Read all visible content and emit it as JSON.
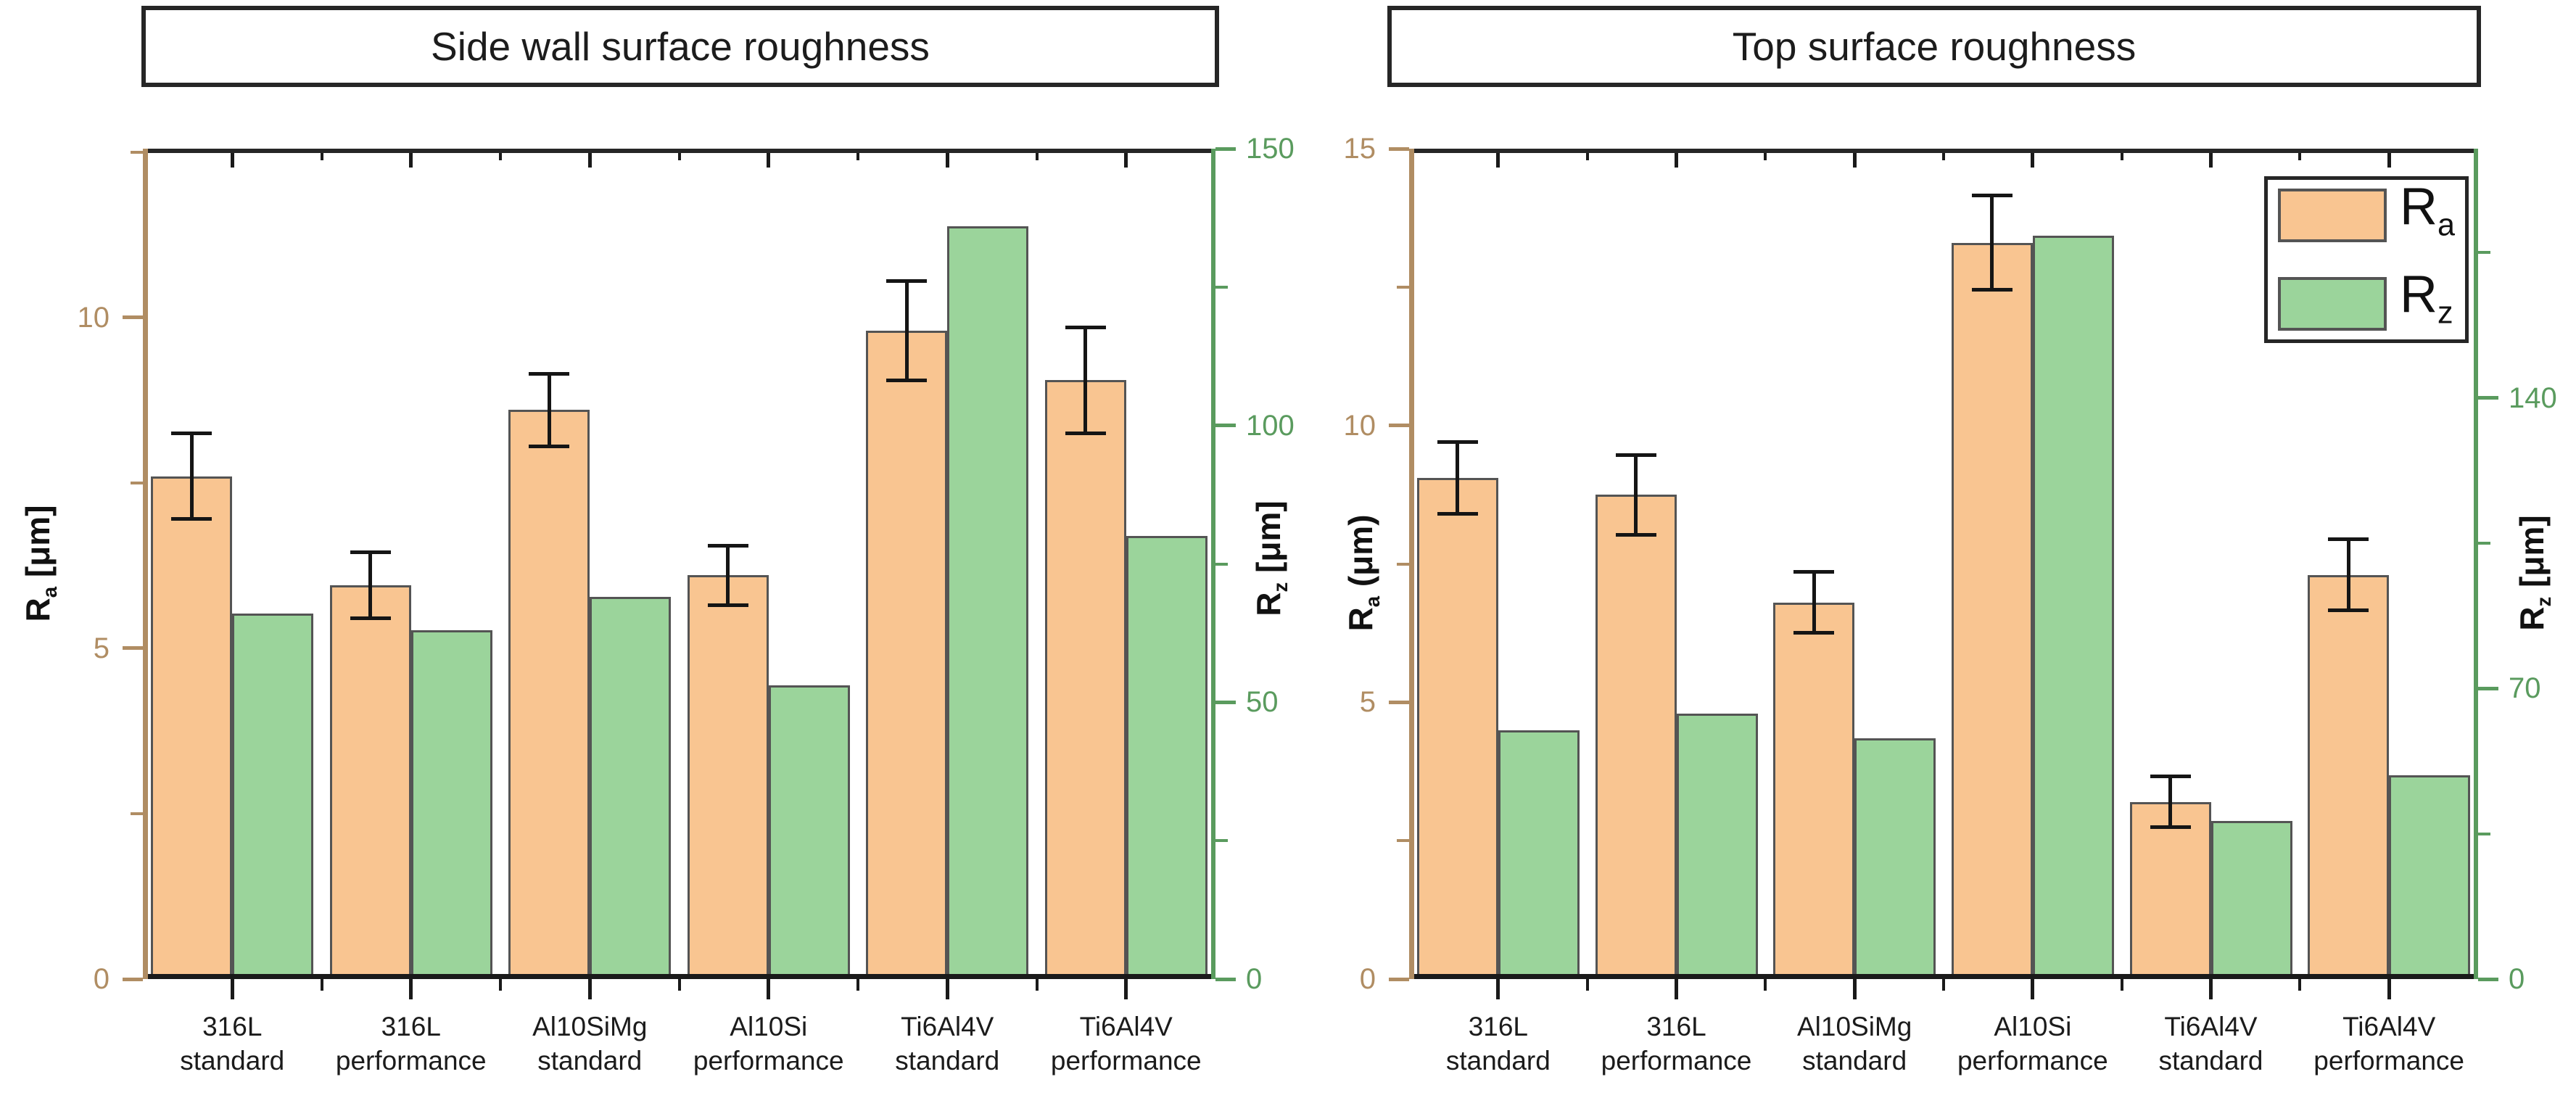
{
  "page": {
    "background": "#ffffff",
    "bar_edge_color": "#545454",
    "error_bar_color": "#151515",
    "frame_color": "#262626"
  },
  "chart_data": [
    {
      "type": "bar",
      "title": "Side wall surface roughness",
      "categories": [
        "316L standard",
        "316L performance",
        "Al10SiMg standard",
        "Al10Si performance",
        "Ti6Al4V standard",
        "Ti6Al4V performance"
      ],
      "category_lines": [
        [
          "316L",
          "standard"
        ],
        [
          "316L",
          "performance"
        ],
        [
          "Al10SiMg",
          "standard"
        ],
        [
          "Al10Si",
          "performance"
        ],
        [
          "Ti6Al4V",
          "standard"
        ],
        [
          "Ti6Al4V",
          "performance"
        ]
      ],
      "series": [
        {
          "name": "Ra",
          "axis": "left",
          "unit": "μm",
          "color": "#f9c591",
          "values": [
            7.6,
            5.95,
            8.6,
            6.1,
            9.8,
            9.05
          ],
          "errors": [
            0.65,
            0.5,
            0.55,
            0.45,
            0.75,
            0.8
          ]
        },
        {
          "name": "Rz",
          "axis": "right",
          "unit": "μm",
          "color": "#9bd49b",
          "values": [
            66,
            63,
            69,
            53,
            136,
            80
          ]
        }
      ],
      "left_axis": {
        "base": "R",
        "sub": "a",
        "unit": " [μm]",
        "color": "#b08d63",
        "range": [
          0,
          12.55
        ],
        "major_ticks": [
          0,
          5,
          10
        ],
        "minor_ticks": [
          2.5,
          7.5,
          12.5
        ]
      },
      "right_axis": {
        "base": "R",
        "sub": "z",
        "unit": " [μm]",
        "color": "#5a9b5e",
        "range": [
          0,
          150
        ],
        "major_ticks": [
          0,
          50,
          100,
          150
        ],
        "minor_ticks": [
          25,
          75,
          125
        ]
      },
      "grid": false,
      "legend": null
    },
    {
      "type": "bar",
      "title": "Top surface roughness",
      "categories": [
        "316L standard",
        "316L performance",
        "Al10SiMg standard",
        "Al10Si performance",
        "Ti6Al4V standard",
        "Ti6Al4V performance"
      ],
      "category_lines": [
        [
          "316L",
          "standard"
        ],
        [
          "316L",
          "performance"
        ],
        [
          "Al10SiMg",
          "standard"
        ],
        [
          "Al10Si",
          "performance"
        ],
        [
          "Ti6Al4V",
          "standard"
        ],
        [
          "Ti6Al4V",
          "performance"
        ]
      ],
      "series": [
        {
          "name": "Ra",
          "axis": "left",
          "unit": "μm",
          "color": "#f9c591",
          "values": [
            9.05,
            8.75,
            6.8,
            13.3,
            3.2,
            7.3
          ],
          "errors": [
            0.65,
            0.72,
            0.55,
            0.85,
            0.46,
            0.64
          ]
        },
        {
          "name": "Rz",
          "axis": "right",
          "unit": "μm",
          "color": "#9bd49b",
          "values": [
            60,
            64,
            58,
            179,
            38,
            49
          ]
        }
      ],
      "left_axis": {
        "base": "R",
        "sub": "a",
        "unit": " (μm)",
        "color": "#b08d63",
        "range": [
          0,
          15
        ],
        "major_ticks": [
          0,
          5,
          10,
          15
        ],
        "minor_ticks": [
          2.5,
          7.5,
          12.5
        ]
      },
      "right_axis": {
        "base": "R",
        "sub": "z",
        "unit": " [μm]",
        "color": "#5a9b5e",
        "range": [
          0,
          200
        ],
        "major_ticks": [
          0,
          70,
          140
        ],
        "minor_ticks": [
          35,
          105,
          175
        ]
      },
      "grid": false,
      "legend": {
        "position": "top-right",
        "entries": [
          {
            "base": "R",
            "sub": "a",
            "color": "#f9c591"
          },
          {
            "base": "R",
            "sub": "z",
            "color": "#9bd49b"
          }
        ]
      }
    }
  ]
}
